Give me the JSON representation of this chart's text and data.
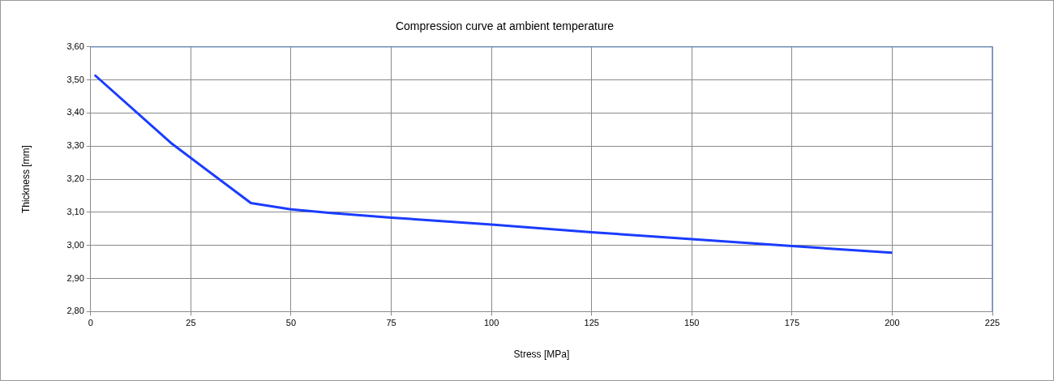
{
  "chart_data": {
    "type": "line",
    "title": "Compression curve at ambient temperature",
    "xlabel": "Stress [MPa]",
    "ylabel": "Thickness [mm]",
    "x": [
      1,
      20,
      40,
      50,
      60,
      75,
      100,
      125,
      150,
      175,
      200
    ],
    "series": [
      {
        "color": "#1a3cff",
        "values": [
          3.515,
          3.31,
          3.128,
          3.109,
          3.098,
          3.084,
          3.063,
          3.04,
          3.019,
          2.998,
          2.978
        ]
      }
    ],
    "xlim": [
      0,
      225
    ],
    "xticks": [
      0,
      25,
      50,
      75,
      100,
      125,
      150,
      175,
      200,
      225
    ],
    "ylim": [
      2.8,
      3.6
    ],
    "yticks": [
      {
        "value": 2.8,
        "label": "2,80"
      },
      {
        "value": 2.9,
        "label": "2,90"
      },
      {
        "value": 3.0,
        "label": "3,00"
      },
      {
        "value": 3.1,
        "label": "3,10"
      },
      {
        "value": 3.2,
        "label": "3,20"
      },
      {
        "value": 3.3,
        "label": "3,30"
      },
      {
        "value": 3.4,
        "label": "3,40"
      },
      {
        "value": 3.5,
        "label": "3,50"
      },
      {
        "value": 3.6,
        "label": "3,60"
      }
    ],
    "grid": true,
    "legend": false,
    "marker": "none",
    "line_style": "solid"
  }
}
